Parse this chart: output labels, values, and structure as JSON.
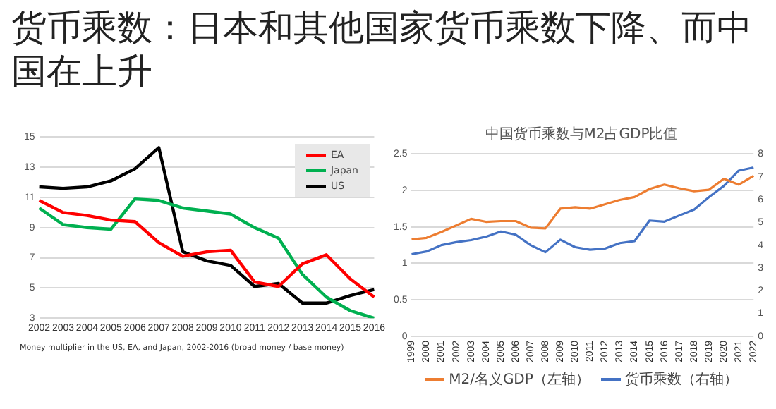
{
  "chart_data": [
    {
      "type": "other",
      "title": "货币乘数：日本和其他国家货币乘数下降、而中国在上升"
    },
    {
      "type": "line",
      "categories": [
        "2002",
        "2003",
        "2004",
        "2005",
        "2006",
        "2007",
        "2008",
        "2009",
        "2010",
        "2011",
        "2012",
        "2013",
        "2014",
        "2015",
        "2016"
      ],
      "series": [
        {
          "name": "EA",
          "color": "#ff0000",
          "values": [
            10.8,
            10.0,
            9.8,
            9.5,
            9.4,
            8.0,
            7.1,
            7.4,
            7.5,
            5.4,
            5.1,
            6.6,
            7.2,
            5.6,
            4.4
          ]
        },
        {
          "name": "Japan",
          "color": "#00b050",
          "values": [
            10.3,
            9.2,
            9.0,
            8.9,
            10.9,
            10.8,
            10.3,
            10.1,
            9.9,
            9.0,
            8.3,
            5.9,
            4.4,
            3.5,
            3.0
          ]
        },
        {
          "name": "US",
          "color": "#000000",
          "values": [
            11.7,
            11.6,
            11.7,
            12.1,
            12.9,
            14.3,
            7.4,
            6.8,
            6.5,
            5.1,
            5.3,
            4.0,
            4.0,
            4.5,
            4.9
          ]
        }
      ],
      "ylim": [
        3,
        15
      ],
      "yticks": [
        3,
        5,
        7,
        9,
        11,
        13,
        15
      ],
      "grid": "y",
      "legend": "top right",
      "marker": "none",
      "annotations": [
        "Money multiplier in the US, EA, and Japan, 2002-2016 (broad money / base money)"
      ]
    },
    {
      "type": "line",
      "title": "中国货币乘数与M2占GDP比值",
      "categories": [
        "1999",
        "2000",
        "2001",
        "2002",
        "2003",
        "2004",
        "2005",
        "2006",
        "2007",
        "2008",
        "2009",
        "2010",
        "2011",
        "2012",
        "2013",
        "2014",
        "2015",
        "2016",
        "2017",
        "2018",
        "2019",
        "2020",
        "2021",
        "2022"
      ],
      "series": [
        {
          "name": "M2/名义GDP（左轴）",
          "color": "#ed7d31",
          "values": [
            1.33,
            1.35,
            1.43,
            1.52,
            1.61,
            1.57,
            1.58,
            1.58,
            1.49,
            1.48,
            1.75,
            1.77,
            1.75,
            1.81,
            1.87,
            1.91,
            2.02,
            2.08,
            2.03,
            1.99,
            2.01,
            2.16,
            2.08,
            2.2
          ]
        },
        {
          "name": "货币乘数（右轴）",
          "color": "#4472c4",
          "axis": "y2",
          "values": [
            3.6,
            3.72,
            4.0,
            4.13,
            4.22,
            4.37,
            4.6,
            4.46,
            4.0,
            3.69,
            4.24,
            3.91,
            3.8,
            3.85,
            4.09,
            4.18,
            5.08,
            5.03,
            5.3,
            5.56,
            6.11,
            6.6,
            7.27,
            7.41
          ]
        }
      ],
      "ylim": [
        0,
        2.5
      ],
      "yticks": [
        0,
        0.5,
        1,
        1.5,
        2,
        2.5
      ],
      "y2lim": [
        0,
        8
      ],
      "y2ticks": [
        0,
        1,
        2,
        3,
        4,
        5,
        6,
        7,
        8
      ],
      "grid": "y",
      "legend": "bottom",
      "marker": "none"
    }
  ]
}
